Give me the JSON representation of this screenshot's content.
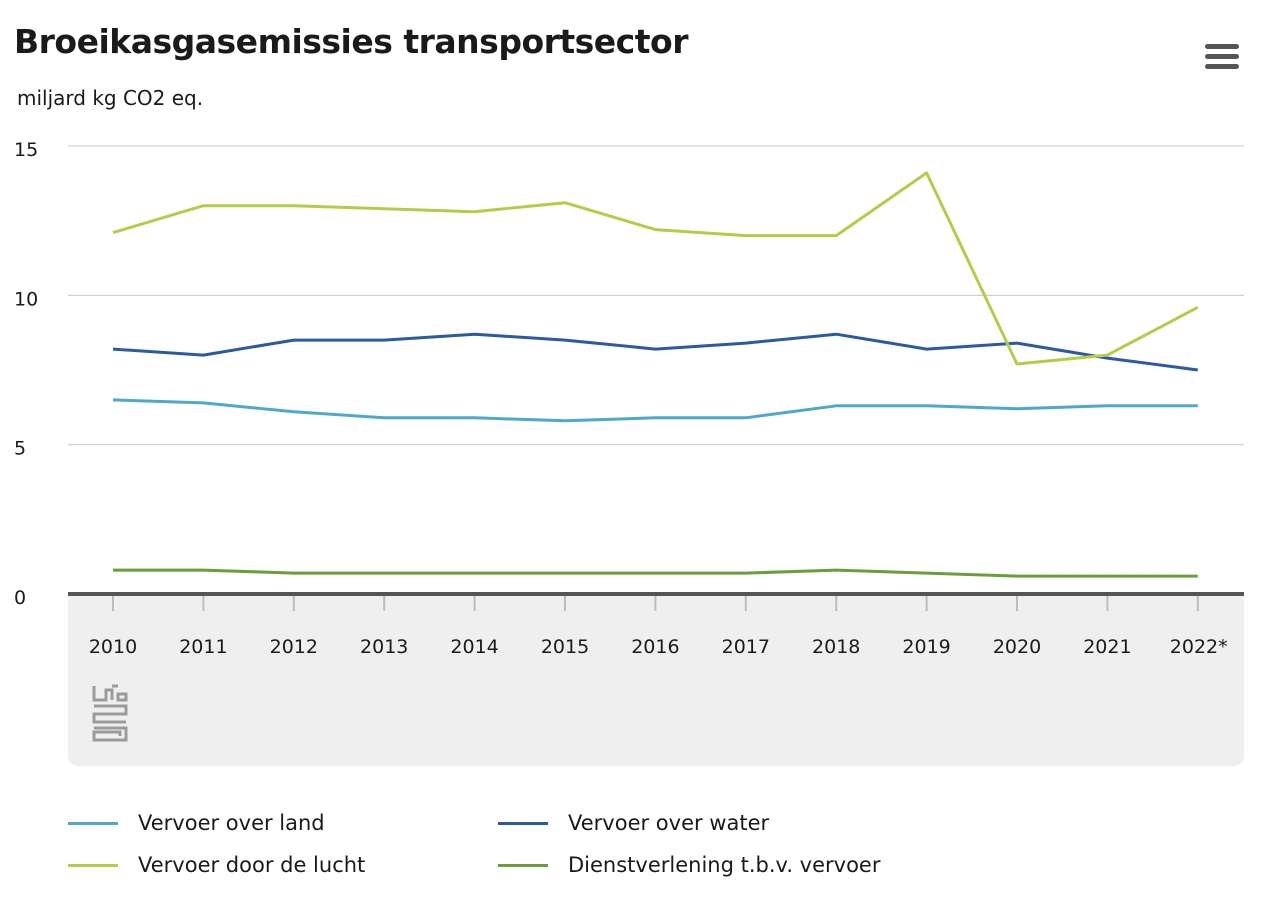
{
  "header": {
    "title": "Broeikasgasemissies transportsector",
    "subtitle": "miljard kg CO2 eq."
  },
  "menu": {
    "icon": "hamburger-menu-icon"
  },
  "logo": {
    "icon": "cbs-logo-icon"
  },
  "chart_data": {
    "type": "line",
    "title": "Broeikasgasemissies transportsector",
    "ylabel": "miljard kg CO2 eq.",
    "xlabel": "",
    "categories": [
      "2010",
      "2011",
      "2012",
      "2013",
      "2014",
      "2015",
      "2016",
      "2017",
      "2018",
      "2019",
      "2020",
      "2021",
      "2022*"
    ],
    "yticks": [
      "0",
      "5",
      "10",
      "15"
    ],
    "ylim": [
      0,
      15
    ],
    "grid": true,
    "legend_position": "bottom",
    "series": [
      {
        "name": "Vervoer over land",
        "color": "#4fa8cc",
        "values": [
          6.5,
          6.4,
          6.1,
          5.9,
          5.9,
          5.8,
          5.9,
          5.9,
          6.3,
          6.3,
          6.2,
          6.3,
          6.3
        ]
      },
      {
        "name": "Vervoer over water",
        "color": "#2c5aa0",
        "values": [
          8.2,
          8.0,
          8.5,
          8.5,
          8.7,
          8.5,
          8.2,
          8.4,
          8.7,
          8.2,
          8.4,
          7.9,
          7.5
        ]
      },
      {
        "name": "Vervoer door de lucht",
        "color": "#b2cd4a",
        "values": [
          12.1,
          13.0,
          13.0,
          12.9,
          12.8,
          13.1,
          12.2,
          12.0,
          12.0,
          14.1,
          7.7,
          8.0,
          9.6
        ]
      },
      {
        "name": "Dienstverlening t.b.v. vervoer",
        "color": "#6a9e3c",
        "values": [
          0.8,
          0.8,
          0.7,
          0.7,
          0.7,
          0.7,
          0.7,
          0.7,
          0.8,
          0.7,
          0.6,
          0.6,
          0.6
        ]
      }
    ]
  }
}
